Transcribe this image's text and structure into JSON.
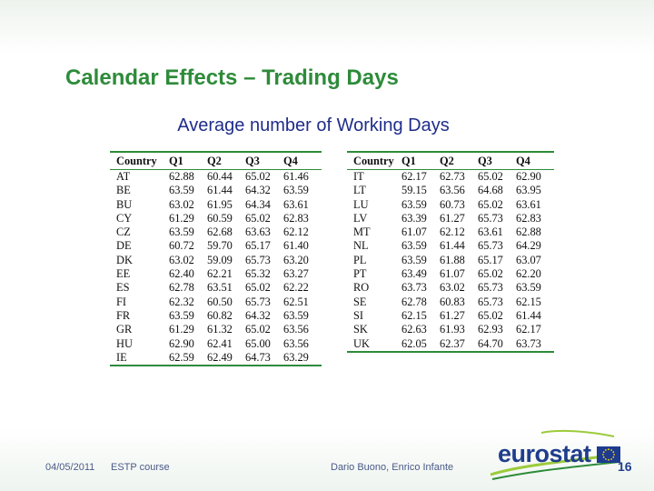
{
  "slide": {
    "title": "Calendar Effects – Trading Days",
    "subtitle": "Average number of Working Days"
  },
  "table_left": {
    "headers": [
      "Country",
      "Q1",
      "Q2",
      "Q3",
      "Q4"
    ],
    "rows": [
      [
        "AT",
        "62.88",
        "60.44",
        "65.02",
        "61.46"
      ],
      [
        "BE",
        "63.59",
        "61.44",
        "64.32",
        "63.59"
      ],
      [
        "BU",
        "63.02",
        "61.95",
        "64.34",
        "63.61"
      ],
      [
        "CY",
        "61.29",
        "60.59",
        "65.02",
        "62.83"
      ],
      [
        "CZ",
        "63.59",
        "62.68",
        "63.63",
        "62.12"
      ],
      [
        "DE",
        "60.72",
        "59.70",
        "65.17",
        "61.40"
      ],
      [
        "DK",
        "63.02",
        "59.09",
        "65.73",
        "63.20"
      ],
      [
        "EE",
        "62.40",
        "62.21",
        "65.32",
        "63.27"
      ],
      [
        "ES",
        "62.78",
        "63.51",
        "65.02",
        "62.22"
      ],
      [
        "FI",
        "62.32",
        "60.50",
        "65.73",
        "62.51"
      ],
      [
        "FR",
        "63.59",
        "60.82",
        "64.32",
        "63.59"
      ],
      [
        "GR",
        "61.29",
        "61.32",
        "65.02",
        "63.56"
      ],
      [
        "HU",
        "62.90",
        "62.41",
        "65.00",
        "63.56"
      ],
      [
        "IE",
        "62.59",
        "62.49",
        "64.73",
        "63.29"
      ]
    ]
  },
  "table_right": {
    "headers": [
      "Country",
      "Q1",
      "Q2",
      "Q3",
      "Q4"
    ],
    "rows": [
      [
        "IT",
        "62.17",
        "62.73",
        "65.02",
        "62.90"
      ],
      [
        "LT",
        "59.15",
        "63.56",
        "64.68",
        "63.95"
      ],
      [
        "LU",
        "63.59",
        "60.73",
        "65.02",
        "63.61"
      ],
      [
        "LV",
        "63.39",
        "61.27",
        "65.73",
        "62.83"
      ],
      [
        "MT",
        "61.07",
        "62.12",
        "63.61",
        "62.88"
      ],
      [
        "NL",
        "63.59",
        "61.44",
        "65.73",
        "64.29"
      ],
      [
        "PL",
        "63.59",
        "61.88",
        "65.17",
        "63.07"
      ],
      [
        "PT",
        "63.49",
        "61.07",
        "65.02",
        "62.20"
      ],
      [
        "RO",
        "63.73",
        "63.02",
        "65.73",
        "63.59"
      ],
      [
        "SE",
        "62.78",
        "60.83",
        "65.73",
        "62.15"
      ],
      [
        "SI",
        "62.15",
        "61.27",
        "65.02",
        "61.44"
      ],
      [
        "SK",
        "62.63",
        "61.93",
        "62.93",
        "62.17"
      ],
      [
        "UK",
        "62.05",
        "62.37",
        "64.70",
        "63.73"
      ]
    ]
  },
  "footer": {
    "date": "04/05/2011",
    "course": "ESTP course",
    "authors": "Dario Buono, Enrico Infante",
    "logo_text": "eurostat",
    "page_number": "16"
  },
  "colors": {
    "title": "#2e8b3a",
    "subtitle": "#1f2d8a",
    "rule": "#2e8b3a",
    "logo": "#1f3d8c"
  },
  "icons": {
    "logo": "eurostat-swoosh-icon",
    "flag": "eu-flag-icon"
  }
}
